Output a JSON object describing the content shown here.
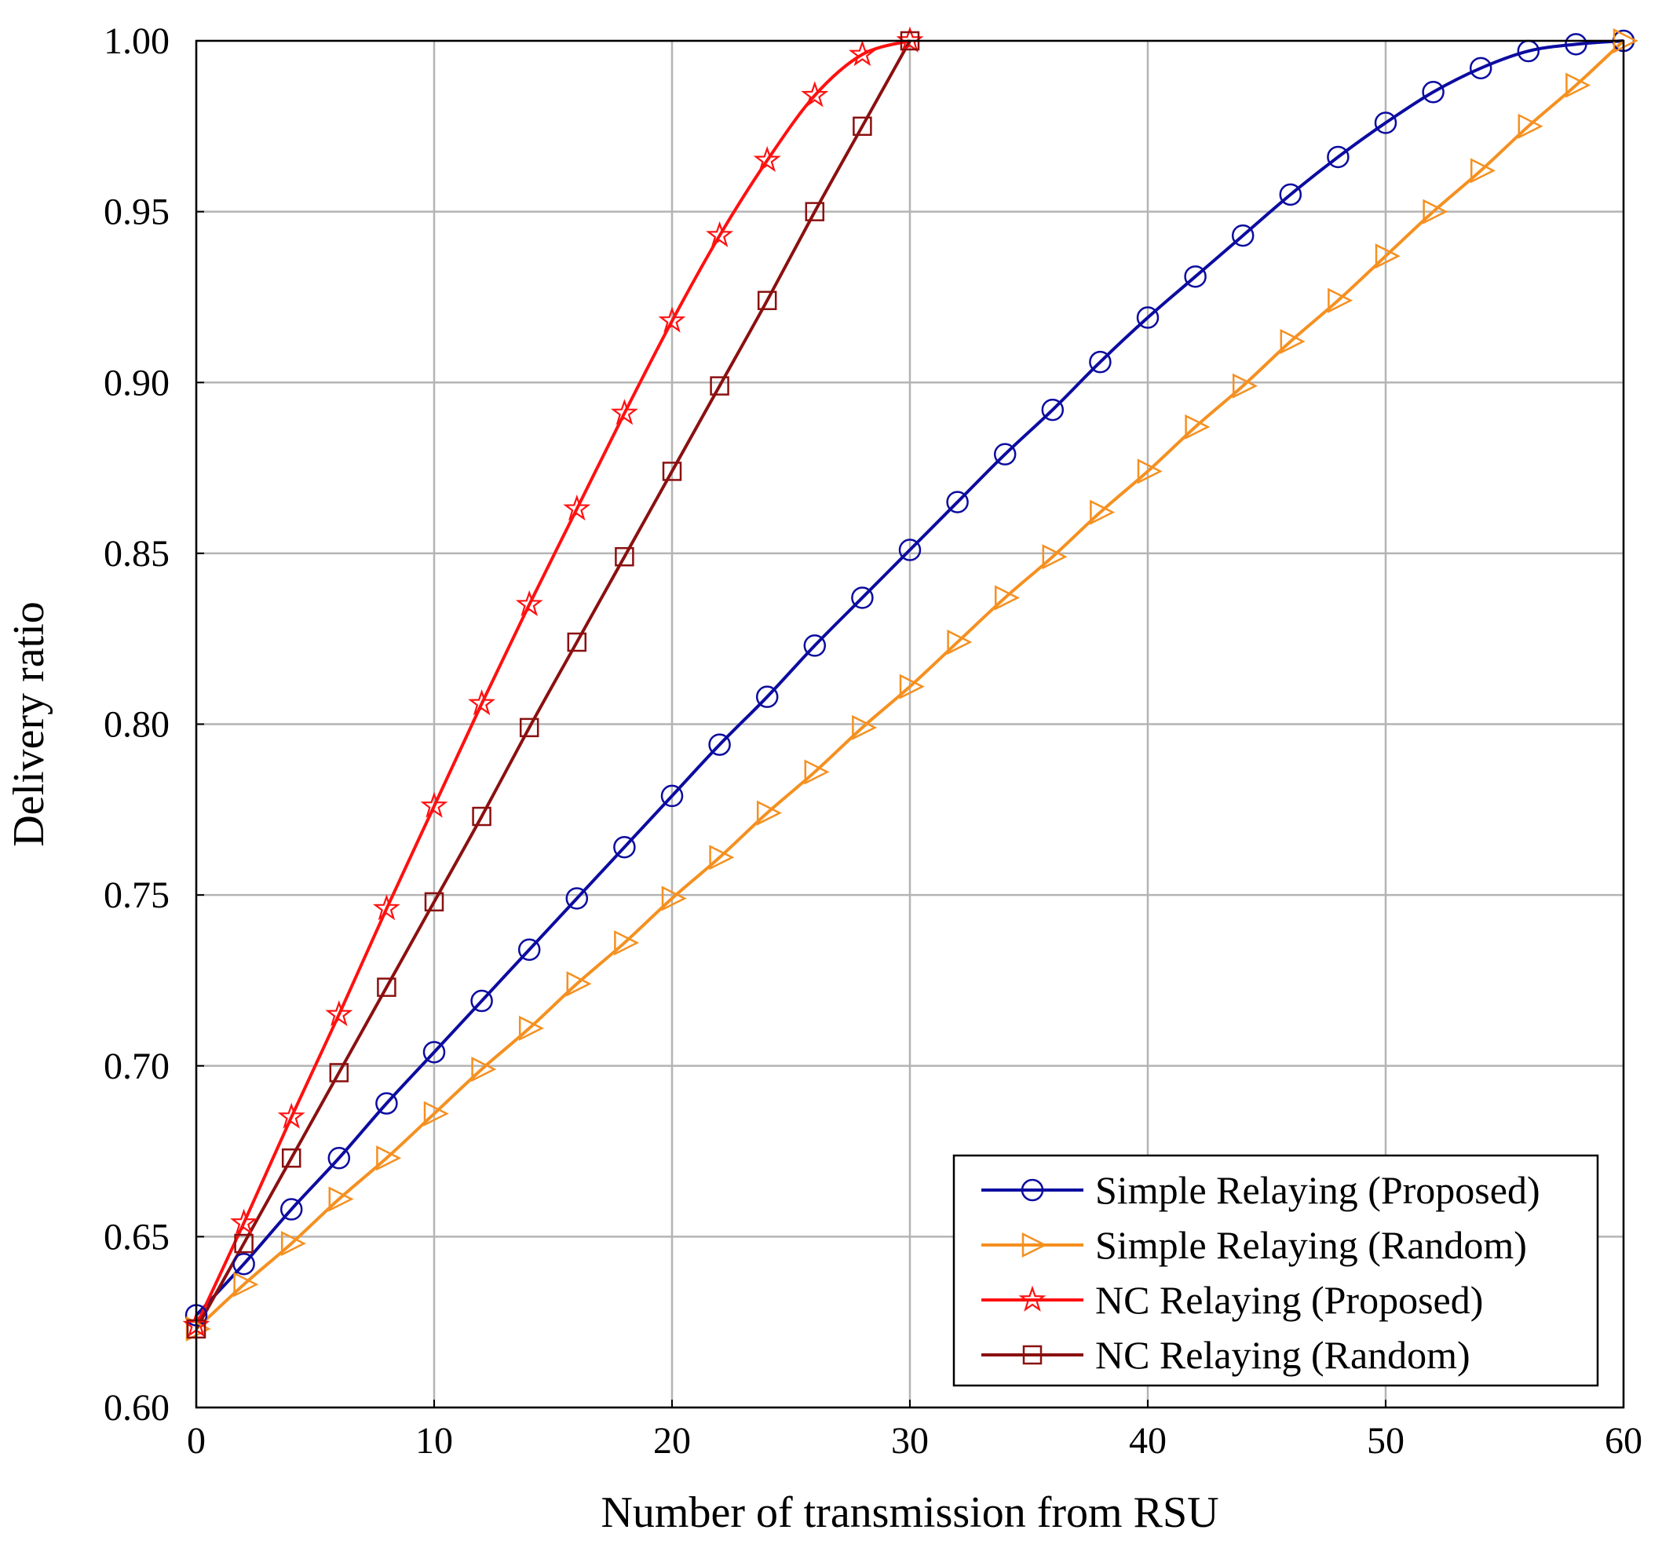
{
  "chart_data": {
    "type": "line",
    "title": "",
    "xlabel": "Number of transmission from RSU",
    "ylabel": "Delivery ratio",
    "xlim": [
      0,
      60
    ],
    "ylim": [
      0.6,
      1.0
    ],
    "grid": true,
    "legend_position": "bottom-right",
    "x_ticks": [
      0,
      10,
      20,
      30,
      40,
      50,
      60
    ],
    "x_tick_labels": [
      "0",
      "10",
      "20",
      "30",
      "40",
      "50",
      "60"
    ],
    "y_ticks": [
      0.6,
      0.65,
      0.7,
      0.75,
      0.8,
      0.85,
      0.9,
      0.95,
      1.0
    ],
    "y_tick_labels": [
      "0.60",
      "0.65",
      "0.70",
      "0.75",
      "0.80",
      "0.85",
      "0.90",
      "0.95",
      "1.00"
    ],
    "series": [
      {
        "name": "Simple Relaying (Proposed)",
        "color": "#0c0ca0",
        "marker": "circle",
        "x": [
          0,
          2,
          4,
          6,
          8,
          10,
          12,
          14,
          16,
          18,
          20,
          22,
          24,
          26,
          28,
          30,
          32,
          34,
          36,
          38,
          40,
          42,
          44,
          46,
          48,
          50,
          52,
          54,
          56,
          58,
          60
        ],
        "y": [
          0.627,
          0.642,
          0.658,
          0.673,
          0.689,
          0.704,
          0.719,
          0.734,
          0.749,
          0.764,
          0.779,
          0.794,
          0.808,
          0.823,
          0.837,
          0.851,
          0.865,
          0.879,
          0.892,
          0.906,
          0.919,
          0.931,
          0.943,
          0.955,
          0.966,
          0.976,
          0.985,
          0.992,
          0.997,
          0.999,
          1.0
        ]
      },
      {
        "name": "Simple Relaying (Random)",
        "color": "#f59020",
        "marker": "triangle-right",
        "x": [
          0,
          2,
          4,
          6,
          8,
          10,
          12,
          14,
          16,
          18,
          20,
          22,
          24,
          26,
          28,
          30,
          32,
          34,
          36,
          38,
          40,
          42,
          44,
          46,
          48,
          50,
          52,
          54,
          56,
          58,
          60
        ],
        "y": [
          0.623,
          0.636,
          0.648,
          0.661,
          0.673,
          0.686,
          0.699,
          0.711,
          0.724,
          0.736,
          0.749,
          0.761,
          0.774,
          0.786,
          0.799,
          0.811,
          0.824,
          0.837,
          0.849,
          0.862,
          0.874,
          0.887,
          0.899,
          0.912,
          0.924,
          0.937,
          0.95,
          0.962,
          0.975,
          0.987,
          1.0
        ]
      },
      {
        "name": "NC Relaying (Proposed)",
        "color": "#ff1010",
        "marker": "star",
        "x": [
          0,
          2,
          4,
          6,
          8,
          10,
          12,
          14,
          16,
          18,
          20,
          22,
          24,
          26,
          28,
          30
        ],
        "y": [
          0.624,
          0.654,
          0.685,
          0.715,
          0.746,
          0.776,
          0.806,
          0.835,
          0.863,
          0.891,
          0.918,
          0.943,
          0.965,
          0.984,
          0.996,
          1.0
        ]
      },
      {
        "name": "NC Relaying (Random)",
        "color": "#8b1010",
        "marker": "square",
        "x": [
          0,
          2,
          4,
          6,
          8,
          10,
          12,
          14,
          16,
          18,
          20,
          22,
          24,
          26,
          28,
          30
        ],
        "y": [
          0.623,
          0.648,
          0.673,
          0.698,
          0.723,
          0.748,
          0.773,
          0.799,
          0.824,
          0.849,
          0.874,
          0.899,
          0.924,
          0.95,
          0.975,
          1.0
        ]
      }
    ]
  }
}
